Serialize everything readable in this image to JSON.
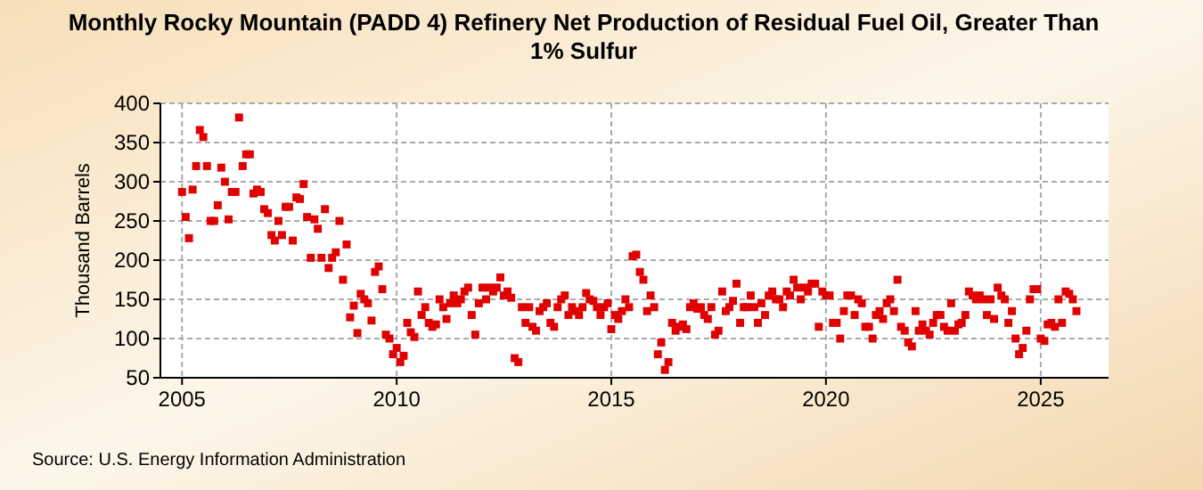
{
  "chart_data": {
    "type": "scatter",
    "title": "Monthly Rocky Mountain (PADD 4) Refinery Net Production of Residual Fuel Oil, Greater Than 1% Sulfur",
    "ylabel": "Thousand Barrels",
    "annotations": [
      "Source: U.S. Energy Information Administration"
    ],
    "marker": "square",
    "grid": true,
    "xlim": [
      "2004-07",
      "2026-08"
    ],
    "xticks": [
      "2005",
      "2010",
      "2015",
      "2020",
      "2025"
    ],
    "ylim": [
      50,
      400
    ],
    "yticks": [
      50,
      100,
      150,
      200,
      250,
      300,
      350,
      400
    ],
    "x": [
      "2005-01",
      "2005-02",
      "2005-03",
      "2005-04",
      "2005-05",
      "2005-06",
      "2005-07",
      "2005-08",
      "2005-09",
      "2005-10",
      "2005-11",
      "2005-12",
      "2006-01",
      "2006-02",
      "2006-03",
      "2006-04",
      "2006-05",
      "2006-06",
      "2006-07",
      "2006-08",
      "2006-09",
      "2006-10",
      "2006-11",
      "2006-12",
      "2007-01",
      "2007-02",
      "2007-03",
      "2007-04",
      "2007-05",
      "2007-06",
      "2007-07",
      "2007-08",
      "2007-09",
      "2007-10",
      "2007-11",
      "2007-12",
      "2008-01",
      "2008-02",
      "2008-03",
      "2008-04",
      "2008-05",
      "2008-06",
      "2008-07",
      "2008-08",
      "2008-09",
      "2008-10",
      "2008-11",
      "2008-12",
      "2009-01",
      "2009-02",
      "2009-03",
      "2009-04",
      "2009-05",
      "2009-06",
      "2009-07",
      "2009-08",
      "2009-09",
      "2009-10",
      "2009-11",
      "2009-12",
      "2010-01",
      "2010-02",
      "2010-03",
      "2010-04",
      "2010-05",
      "2010-06",
      "2010-07",
      "2010-08",
      "2010-09",
      "2010-10",
      "2010-11",
      "2010-12",
      "2011-01",
      "2011-02",
      "2011-03",
      "2011-04",
      "2011-05",
      "2011-06",
      "2011-07",
      "2011-08",
      "2011-09",
      "2011-10",
      "2011-11",
      "2011-12",
      "2012-01",
      "2012-02",
      "2012-03",
      "2012-04",
      "2012-05",
      "2012-06",
      "2012-07",
      "2012-08",
      "2012-09",
      "2012-10",
      "2012-11",
      "2012-12",
      "2013-01",
      "2013-02",
      "2013-03",
      "2013-04",
      "2013-05",
      "2013-06",
      "2013-07",
      "2013-08",
      "2013-09",
      "2013-10",
      "2013-11",
      "2013-12",
      "2014-01",
      "2014-02",
      "2014-03",
      "2014-04",
      "2014-05",
      "2014-06",
      "2014-07",
      "2014-08",
      "2014-09",
      "2014-10",
      "2014-11",
      "2014-12",
      "2015-01",
      "2015-02",
      "2015-03",
      "2015-04",
      "2015-05",
      "2015-06",
      "2015-07",
      "2015-08",
      "2015-09",
      "2015-10",
      "2015-11",
      "2015-12",
      "2016-01",
      "2016-02",
      "2016-03",
      "2016-04",
      "2016-05",
      "2016-06",
      "2016-07",
      "2016-08",
      "2016-09",
      "2016-10",
      "2016-11",
      "2016-12",
      "2017-01",
      "2017-02",
      "2017-03",
      "2017-04",
      "2017-05",
      "2017-06",
      "2017-07",
      "2017-08",
      "2017-09",
      "2017-10",
      "2017-11",
      "2017-12",
      "2018-01",
      "2018-02",
      "2018-03",
      "2018-04",
      "2018-05",
      "2018-06",
      "2018-07",
      "2018-08",
      "2018-09",
      "2018-10",
      "2018-11",
      "2018-12",
      "2019-01",
      "2019-02",
      "2019-03",
      "2019-04",
      "2019-05",
      "2019-06",
      "2019-07",
      "2019-08",
      "2019-09",
      "2019-10",
      "2019-11",
      "2019-12",
      "2020-01",
      "2020-02",
      "2020-03",
      "2020-04",
      "2020-05",
      "2020-06",
      "2020-07",
      "2020-08",
      "2020-09",
      "2020-10",
      "2020-11",
      "2020-12",
      "2021-01",
      "2021-02",
      "2021-03",
      "2021-04",
      "2021-05",
      "2021-06",
      "2021-07",
      "2021-08",
      "2021-09",
      "2021-10",
      "2021-11",
      "2021-12",
      "2022-01",
      "2022-02",
      "2022-03",
      "2022-04",
      "2022-05",
      "2022-06",
      "2022-07",
      "2022-08",
      "2022-09",
      "2022-10",
      "2022-11",
      "2022-12",
      "2023-01",
      "2023-02",
      "2023-03",
      "2023-04",
      "2023-05",
      "2023-06",
      "2023-07",
      "2023-08",
      "2023-09",
      "2023-10",
      "2023-11",
      "2023-12",
      "2024-01",
      "2024-02",
      "2024-03",
      "2024-04",
      "2024-05",
      "2024-06",
      "2024-07",
      "2024-08",
      "2024-09",
      "2024-10",
      "2024-11",
      "2024-12",
      "2025-01",
      "2025-02",
      "2025-03",
      "2025-04",
      "2025-05",
      "2025-06",
      "2025-07",
      "2025-08",
      "2025-09",
      "2025-10",
      "2025-11"
    ],
    "series": [
      {
        "color": "#e00000",
        "values": [
          287,
          255,
          228,
          290,
          320,
          366,
          357,
          320,
          250,
          250,
          270,
          318,
          300,
          252,
          287,
          287,
          382,
          320,
          335,
          335,
          285,
          290,
          287,
          265,
          260,
          232,
          225,
          250,
          232,
          268,
          268,
          225,
          280,
          278,
          297,
          255,
          203,
          252,
          240,
          203,
          265,
          190,
          203,
          210,
          250,
          175,
          220,
          127,
          142,
          107,
          157,
          150,
          145,
          123,
          185,
          192,
          163,
          105,
          100,
          80,
          88,
          70,
          78,
          120,
          108,
          102,
          160,
          130,
          140,
          120,
          115,
          118,
          150,
          140,
          125,
          145,
          155,
          145,
          150,
          160,
          165,
          130,
          105,
          145,
          165,
          150,
          165,
          160,
          165,
          178,
          155,
          160,
          152,
          75,
          70,
          140,
          120,
          140,
          115,
          110,
          135,
          140,
          145,
          120,
          115,
          140,
          150,
          155,
          130,
          140,
          135,
          130,
          140,
          158,
          150,
          148,
          140,
          130,
          140,
          145,
          112,
          130,
          125,
          135,
          150,
          140,
          205,
          207,
          185,
          175,
          135,
          155,
          140,
          80,
          95,
          60,
          70,
          120,
          110,
          115,
          118,
          112,
          140,
          145,
          138,
          140,
          130,
          125,
          140,
          105,
          110,
          160,
          135,
          140,
          148,
          170,
          120,
          140,
          140,
          155,
          140,
          120,
          145,
          130,
          155,
          160,
          150,
          150,
          140,
          160,
          155,
          175,
          165,
          150,
          165,
          160,
          170,
          170,
          115,
          160,
          155,
          155,
          120,
          120,
          100,
          135,
          155,
          155,
          130,
          150,
          145,
          115,
          115,
          100,
          130,
          135,
          125,
          145,
          150,
          135,
          175,
          115,
          110,
          95,
          90,
          135,
          110,
          118,
          110,
          105,
          120,
          130,
          130,
          115,
          110,
          145,
          110,
          118,
          120,
          130,
          160,
          155,
          150,
          155,
          150,
          130,
          150,
          125,
          165,
          155,
          150,
          120,
          135,
          100,
          80,
          88,
          110,
          150,
          163,
          163,
          100,
          97,
          118,
          120,
          115,
          150,
          120,
          160,
          157,
          150,
          135
        ]
      }
    ]
  }
}
